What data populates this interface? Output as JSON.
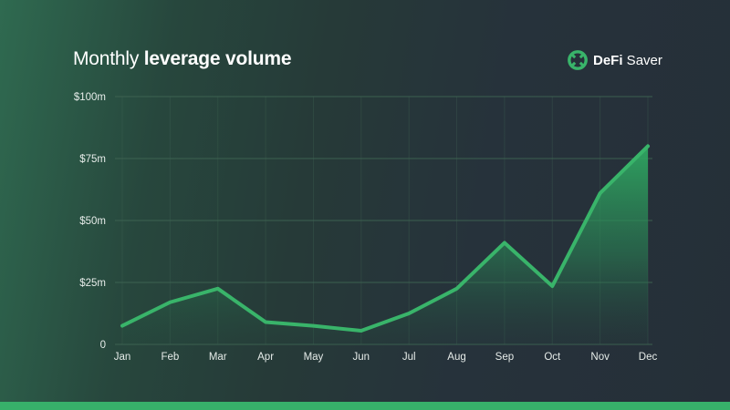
{
  "header": {
    "title_regular": "Monthly ",
    "title_bold": "leverage volume",
    "brand_primary": "DeFi",
    "brand_secondary": " Saver",
    "logo_icon": "defi-saver-logo-icon"
  },
  "colors": {
    "accent": "#39b46a",
    "grid": "#3f6553",
    "tick_text": "#e6ece9",
    "area_top": "#2fa862",
    "line": "#39b46a"
  },
  "chart_data": {
    "type": "area",
    "title": "Monthly leverage volume",
    "xlabel": "",
    "ylabel": "",
    "categories": [
      "Jan",
      "Feb",
      "Mar",
      "Apr",
      "May",
      "Jun",
      "Jul",
      "Aug",
      "Sep",
      "Oct",
      "Nov",
      "Dec"
    ],
    "values": [
      7.5,
      17,
      22.5,
      9,
      7.5,
      5.5,
      12.5,
      22.5,
      41,
      23.5,
      61,
      80
    ],
    "unit": "$m",
    "ylim": [
      0,
      100
    ],
    "yticks": [
      0,
      25,
      50,
      75,
      100
    ],
    "ytick_labels": [
      "0",
      "$25m",
      "$50m",
      "$75m",
      "$100m"
    ],
    "grid": true,
    "legend": "none"
  }
}
